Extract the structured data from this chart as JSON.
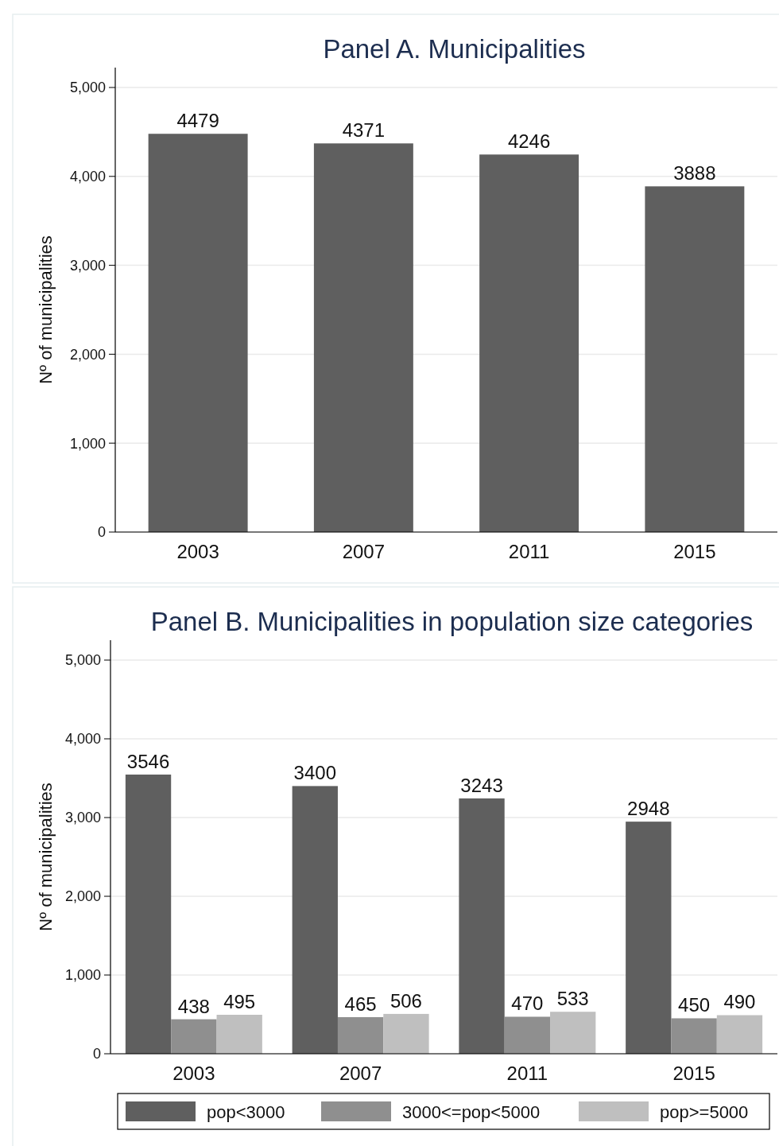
{
  "chart_data": [
    {
      "type": "bar",
      "title": "Panel A. Municipalities",
      "ylabel": "Nº of municipalities",
      "categories": [
        "2003",
        "2007",
        "2011",
        "2015"
      ],
      "series": [
        {
          "color": "#5f5f5f",
          "values": [
            4479,
            4371,
            4246,
            3888
          ]
        }
      ],
      "ylim": [
        0,
        5000
      ],
      "yticks": [
        0,
        {
          "value": 1000,
          "label": "1,000"
        },
        {
          "value": 2000,
          "label": "2,000"
        },
        {
          "value": 3000,
          "label": "3,000"
        },
        {
          "value": 4000,
          "label": "4,000"
        },
        {
          "value": 5000,
          "label": "5,000"
        }
      ],
      "grid": "y",
      "data_labels": true,
      "legend": false
    },
    {
      "type": "bar",
      "title": "Panel B. Municipalities in population size categories",
      "ylabel": "Nº of municipalities",
      "categories": [
        "2003",
        "2007",
        "2011",
        "2015"
      ],
      "series": [
        {
          "name": "pop<3000",
          "color": "#5f5f5f",
          "values": [
            3546,
            3400,
            3243,
            2948
          ]
        },
        {
          "name": "3000<=pop<5000",
          "color": "#8f8f8f",
          "values": [
            438,
            465,
            470,
            450
          ]
        },
        {
          "name": "pop>=5000",
          "color": "#bfbfbf",
          "values": [
            495,
            506,
            533,
            490
          ]
        }
      ],
      "ylim": [
        0,
        5000
      ],
      "yticks": [
        0,
        {
          "value": 1000,
          "label": "1,000"
        },
        {
          "value": 2000,
          "label": "2,000"
        },
        {
          "value": 3000,
          "label": "3,000"
        },
        {
          "value": 4000,
          "label": "4,000"
        },
        {
          "value": 5000,
          "label": "5,000"
        }
      ],
      "grid": "y",
      "data_labels": true,
      "legend": "bottom"
    }
  ]
}
